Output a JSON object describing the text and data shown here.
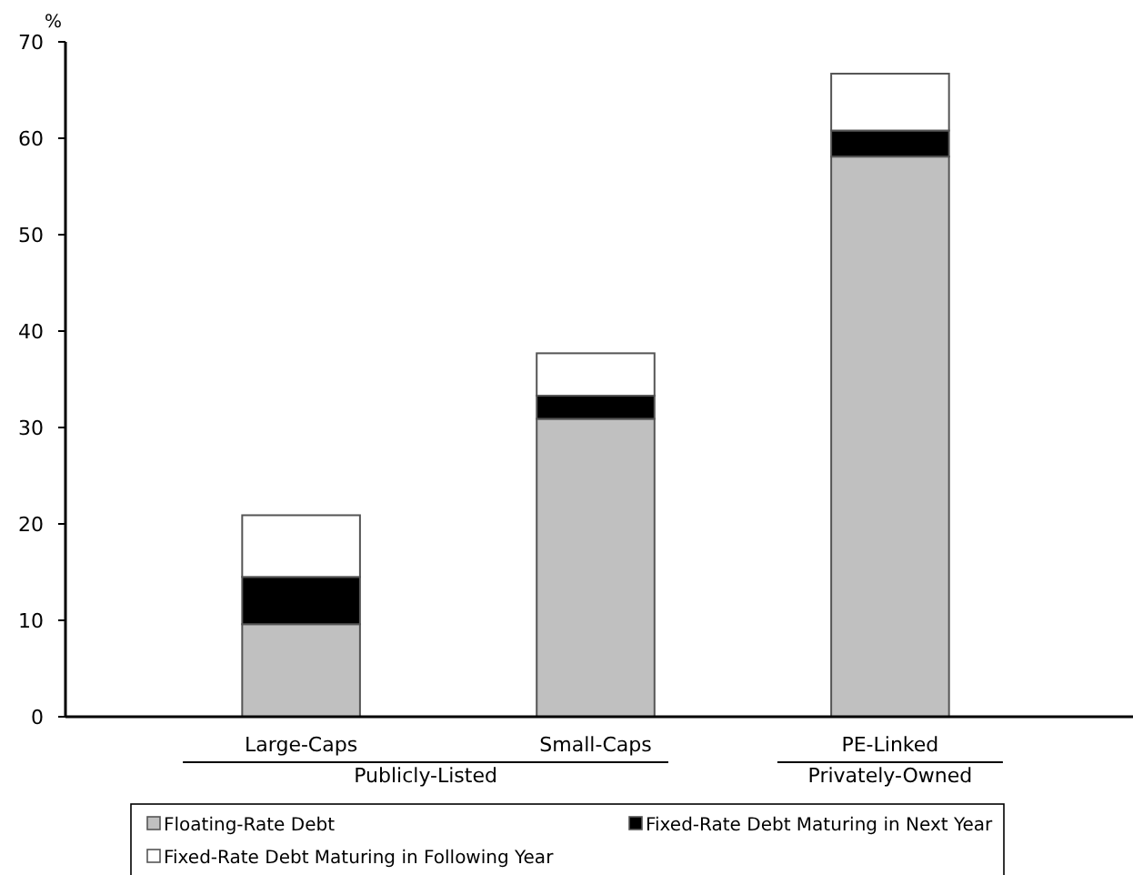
{
  "chart_data": {
    "type": "bar",
    "stacked": true,
    "ylabel": "%",
    "categories": [
      "Large-Caps",
      "Small-Caps",
      "PE-Linked"
    ],
    "series": [
      {
        "name": "Floating-Rate Debt",
        "color": "#c0c0c0",
        "values": [
          9.6,
          30.9,
          58.1
        ]
      },
      {
        "name": "Fixed-Rate Debt Maturing in Next Year",
        "color": "#000000",
        "values": [
          4.9,
          2.4,
          2.7
        ]
      },
      {
        "name": "Fixed-Rate Debt Maturing in Following Year",
        "color": "#ffffff",
        "values": [
          6.4,
          4.4,
          5.9
        ]
      }
    ],
    "ylim": [
      0,
      70
    ],
    "yticks": [
      0,
      10,
      20,
      30,
      40,
      50,
      60,
      70
    ],
    "grid": false,
    "legend": "bottom",
    "annotations": [
      "Publicly-Listed",
      "Privately-Owned"
    ]
  }
}
